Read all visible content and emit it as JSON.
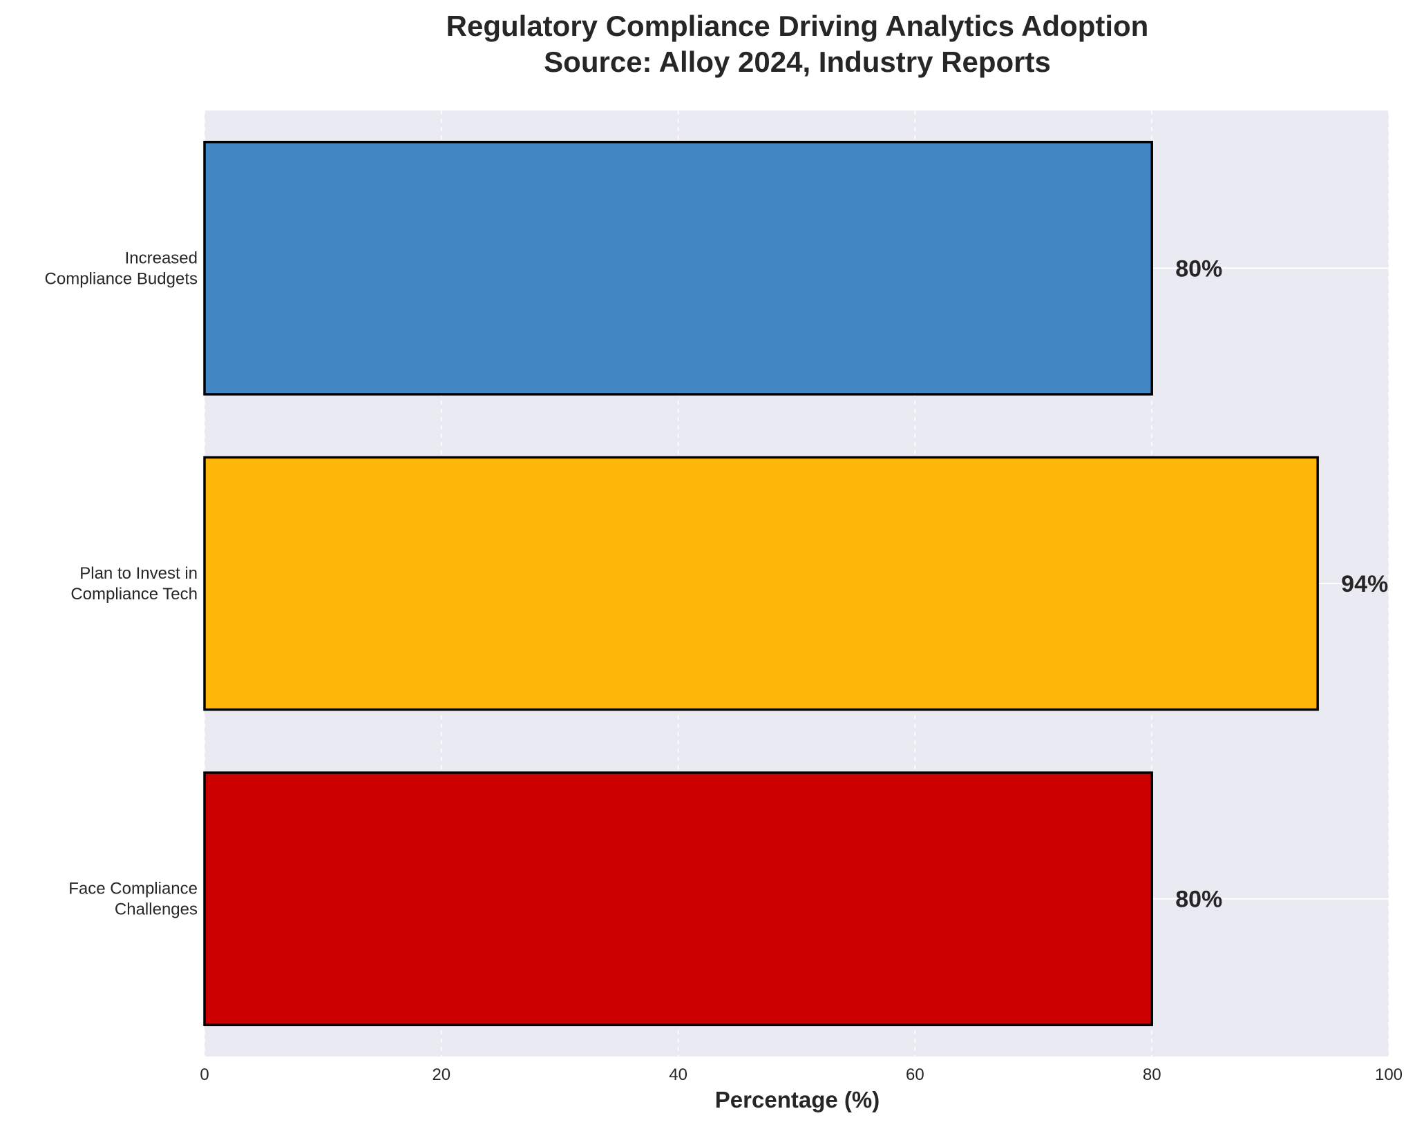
{
  "chart_data": {
    "type": "bar",
    "orientation": "horizontal",
    "title_lines": [
      "Regulatory Compliance Driving Analytics Adoption",
      "Source: Alloy 2024, Industry Reports"
    ],
    "xlabel": "Percentage (%)",
    "ylabel": "",
    "categories": [
      [
        "Increased",
        "Compliance Budgets"
      ],
      [
        "Plan to Invest in",
        "Compliance Tech"
      ],
      [
        "Face Compliance",
        "Challenges"
      ]
    ],
    "values": [
      80,
      94,
      80
    ],
    "value_labels": [
      "80%",
      "94%",
      "80%"
    ],
    "colors": [
      "#4287c4",
      "#fdb80a",
      "#cc0000"
    ],
    "xlim": [
      0,
      100
    ],
    "xticks": [
      0,
      20,
      40,
      60,
      80,
      100
    ],
    "grid": true,
    "background": "#eaeaf2",
    "bar_edge_color": "#000000"
  }
}
